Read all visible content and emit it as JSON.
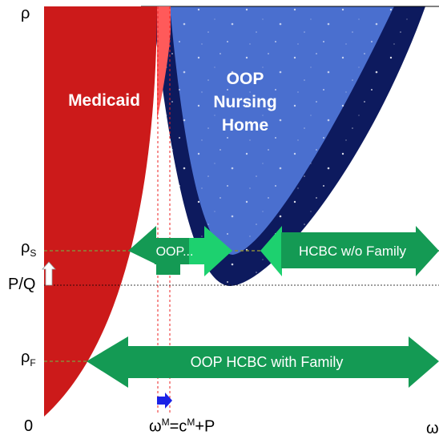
{
  "regions": {
    "medicaid": "Medicaid",
    "oop_nursing_home": [
      "OOP",
      "Nursing",
      "Home"
    ]
  },
  "arrows": {
    "oop_short": "OOP...",
    "hcbc_without_family": "HCBC w/o Family",
    "oop_hcbc_with_family": "OOP HCBC with Family"
  },
  "axis": {
    "y_top": "ρ",
    "rho_s_base": "ρ",
    "rho_s_sub": "S",
    "pq": "P/Q",
    "rho_f_base": "ρ",
    "rho_f_sub": "F",
    "origin": "0",
    "x_formula_base1": "ω",
    "x_formula_sup1": "M",
    "x_formula_mid": "=c",
    "x_formula_sup2": "M",
    "x_formula_end": "+P",
    "x_end": "ω"
  },
  "colors": {
    "medicaid_red": "#cc1a1a",
    "nursing_blue": "#4a6fcf",
    "nursing_dark": "#0d1a5e",
    "hcbc_green": "#149a54",
    "hcbc_light_green": "#1dd16f",
    "guide_dashed": "#8a8a3a",
    "red_dashed": "#ee2222",
    "blue_arrow": "#1a22e6"
  }
}
